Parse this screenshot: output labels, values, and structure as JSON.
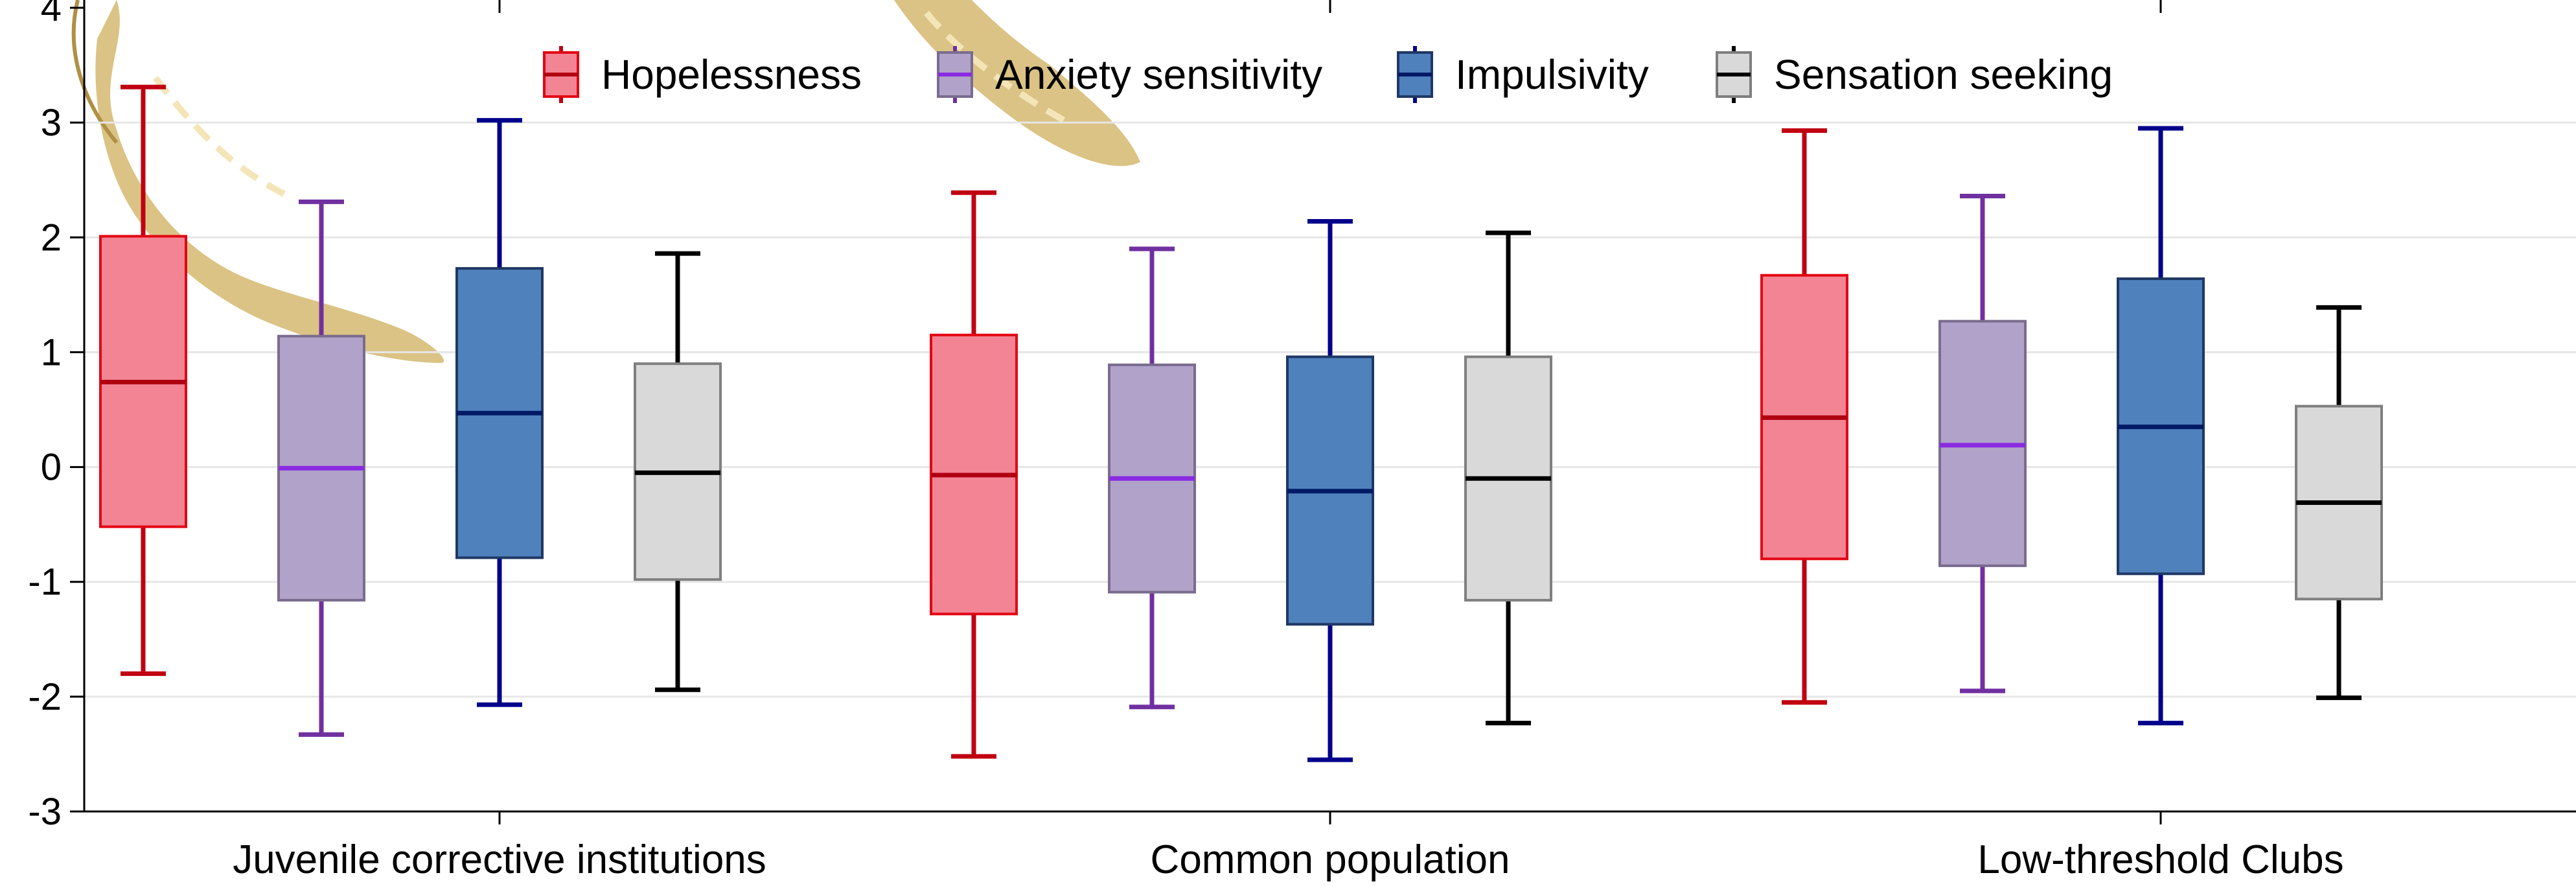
{
  "chart_data": {
    "type": "box",
    "ylim": [
      -3,
      4
    ],
    "yticks": [
      -3,
      -2,
      -1,
      0,
      1,
      2,
      3,
      4
    ],
    "grid": true,
    "legend_position": "top",
    "categories": [
      "Juvenile corrective institutions",
      "Common population",
      "Low-threshold Clubs"
    ],
    "series": [
      {
        "name": "Hopelessness",
        "fill": "#f28494",
        "stroke": "#e30613",
        "whisker": "#c00010",
        "median": "#b00010",
        "boxes": [
          {
            "min": -1.8,
            "q1": -0.52,
            "median": 0.74,
            "q3": 2.01,
            "max": 3.31
          },
          {
            "min": -2.52,
            "q1": -1.28,
            "median": -0.07,
            "q3": 1.15,
            "max": 2.39
          },
          {
            "min": -2.05,
            "q1": -0.8,
            "median": 0.43,
            "q3": 1.67,
            "max": 2.93
          }
        ]
      },
      {
        "name": "Anxiety sensitivity",
        "fill": "#b0a2c9",
        "stroke": "#7a6c8e",
        "whisker": "#7030a0",
        "median": "#8a2be2",
        "boxes": [
          {
            "min": -2.33,
            "q1": -1.16,
            "median": -0.01,
            "q3": 1.14,
            "max": 2.31
          },
          {
            "min": -2.09,
            "q1": -1.09,
            "median": -0.1,
            "q3": 0.89,
            "max": 1.9
          },
          {
            "min": -1.95,
            "q1": -0.86,
            "median": 0.19,
            "q3": 1.27,
            "max": 2.36
          }
        ]
      },
      {
        "name": "Impulsivity",
        "fill": "#4f81bd",
        "stroke": "#1f3864",
        "whisker": "#00008b",
        "median": "#001a66",
        "boxes": [
          {
            "min": -2.07,
            "q1": -0.79,
            "median": 0.47,
            "q3": 1.73,
            "max": 3.02
          },
          {
            "min": -2.55,
            "q1": -1.37,
            "median": -0.21,
            "q3": 0.96,
            "max": 2.14
          },
          {
            "min": -2.23,
            "q1": -0.93,
            "median": 0.35,
            "q3": 1.64,
            "max": 2.95
          }
        ]
      },
      {
        "name": "Sensation seeking",
        "fill": "#d9d9d9",
        "stroke": "#7f7f7f",
        "whisker": "#000000",
        "median": "#000000",
        "boxes": [
          {
            "min": -1.94,
            "q1": -0.98,
            "median": -0.05,
            "q3": 0.9,
            "max": 1.86
          },
          {
            "min": -2.23,
            "q1": -1.16,
            "median": -0.1,
            "q3": 0.96,
            "max": 2.04
          },
          {
            "min": -2.01,
            "q1": -1.15,
            "median": -0.31,
            "q3": 0.53,
            "max": 1.39
          }
        ]
      }
    ]
  }
}
